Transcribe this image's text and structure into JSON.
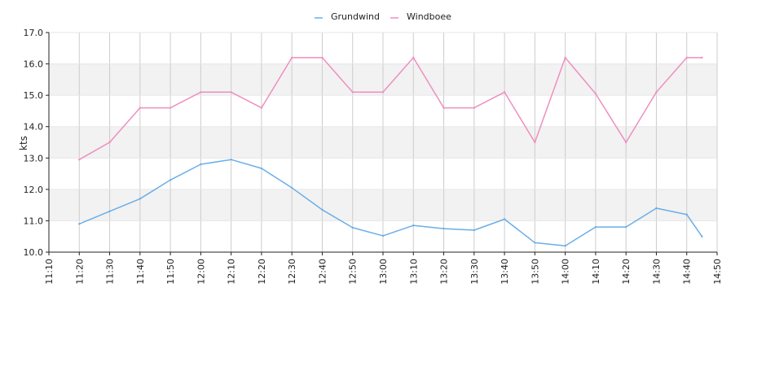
{
  "chart_data": {
    "type": "line",
    "title": "",
    "xlabel": "",
    "ylabel": "kts",
    "ylim": [
      10.0,
      17.0
    ],
    "yticks": [
      "10.0",
      "11.0",
      "12.0",
      "13.0",
      "14.0",
      "15.0",
      "16.0",
      "17.0"
    ],
    "xticks": [
      "11:10",
      "11:20",
      "11:30",
      "11:40",
      "11:50",
      "12:00",
      "12:10",
      "12:20",
      "12:30",
      "12:40",
      "12:50",
      "13:00",
      "13:10",
      "13:20",
      "13:30",
      "13:40",
      "13:50",
      "14:00",
      "14:10",
      "14:20",
      "14:30",
      "14:40",
      "14:50"
    ],
    "xlim": [
      "11:10",
      "14:50"
    ],
    "grid": true,
    "legend_position": "top-center",
    "series": [
      {
        "name": "Grundwind",
        "color": "#6aaee8",
        "x": [
          "11:20",
          "11:30",
          "11:40",
          "11:50",
          "12:00",
          "12:10",
          "12:20",
          "12:30",
          "12:40",
          "12:50",
          "13:00",
          "13:10",
          "13:20",
          "13:30",
          "13:40",
          "13:50",
          "14:00",
          "14:10",
          "14:20",
          "14:30",
          "14:40",
          "14:45"
        ],
        "values": [
          10.9,
          11.3,
          11.7,
          12.3,
          12.8,
          12.95,
          12.67,
          12.05,
          11.35,
          10.78,
          10.52,
          10.85,
          10.75,
          10.7,
          11.05,
          10.3,
          10.2,
          10.8,
          10.8,
          11.4,
          11.2,
          10.5
        ]
      },
      {
        "name": "Windboee",
        "color": "#ee8fbf",
        "x": [
          "11:20",
          "11:30",
          "11:40",
          "11:50",
          "12:00",
          "12:10",
          "12:20",
          "12:30",
          "12:40",
          "12:50",
          "13:00",
          "13:10",
          "13:20",
          "13:30",
          "13:40",
          "13:50",
          "14:00",
          "14:10",
          "14:20",
          "14:30",
          "14:40",
          "14:45"
        ],
        "values": [
          12.95,
          13.5,
          14.6,
          14.6,
          15.1,
          15.1,
          14.6,
          16.2,
          16.2,
          15.1,
          15.1,
          16.2,
          14.6,
          14.6,
          15.1,
          13.5,
          16.2,
          15.05,
          13.5,
          15.1,
          16.2,
          16.2
        ]
      }
    ],
    "colors": {
      "band": "#f2f2f2",
      "grid": "#cccccc",
      "axis": "#222222"
    }
  }
}
